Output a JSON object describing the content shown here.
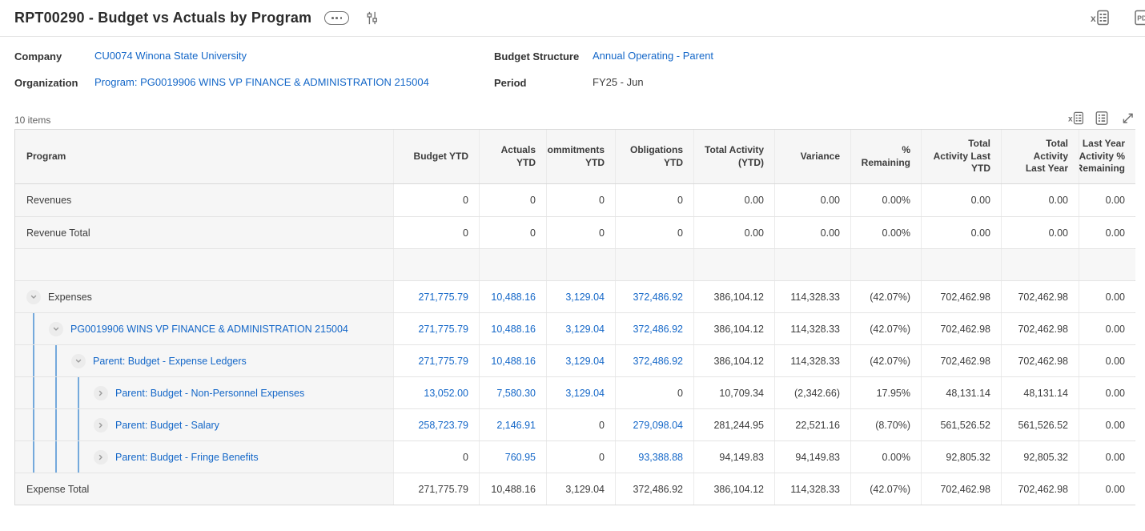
{
  "page": {
    "title": "RPT00290 - Budget vs Actuals by Program"
  },
  "icons": {
    "related_actions": "ellipsis-pill",
    "chart_settings": "sliders-icon",
    "export_excel": "excel-export-icon",
    "export_pdf": "pdf-export-icon",
    "grid_view": "grid-view-icon",
    "expand": "expand-icon",
    "pdf_label": "PDF"
  },
  "colors": {
    "link_blue": "#1467c8",
    "guide_blue": "#74a9dc",
    "cell_gray": "#f6f6f6"
  },
  "filters": [
    {
      "label": "Company",
      "value": "CU0074 Winona State University",
      "is_link": true
    },
    {
      "label": "Budget Structure",
      "value": "Annual Operating - Parent",
      "is_link": true
    },
    {
      "label": "Organization",
      "value": "Program: PG0019906 WINS VP FINANCE & ADMINISTRATION 215004",
      "is_link": true
    },
    {
      "label": "Period",
      "value": "FY25 - Jun",
      "is_link": false
    }
  ],
  "table": {
    "items_count": "10 items",
    "columns": [
      "Program",
      "Budget YTD",
      "Actuals YTD",
      "Commitments YTD",
      "Obligations YTD",
      "Total Activity (YTD)",
      "Variance",
      "% Remaining",
      "Total Activity Last YTD",
      "Total Activity Last Year",
      "Last Year Activity % Remaining"
    ],
    "rows": [
      {
        "program": "Revenues",
        "indent": 0,
        "chevron": "none",
        "program_link": false,
        "empty": false,
        "values": [
          "0",
          "0",
          "0",
          "0",
          "0.00",
          "0.00",
          "0.00%",
          "0.00",
          "0.00",
          "0.00"
        ],
        "blue": [
          0,
          0,
          0,
          0,
          0,
          0,
          0,
          0,
          0,
          0
        ]
      },
      {
        "program": "Revenue Total",
        "indent": 0,
        "chevron": "none",
        "program_link": false,
        "empty": false,
        "values": [
          "0",
          "0",
          "0",
          "0",
          "0.00",
          "0.00",
          "0.00%",
          "0.00",
          "0.00",
          "0.00"
        ],
        "blue": [
          0,
          0,
          0,
          0,
          0,
          0,
          0,
          0,
          0,
          0
        ]
      },
      {
        "program": "",
        "indent": 0,
        "chevron": "none",
        "program_link": false,
        "empty": true,
        "values": [
          "",
          "",
          "",
          "",
          "",
          "",
          "",
          "",
          "",
          ""
        ],
        "blue": [
          0,
          0,
          0,
          0,
          0,
          0,
          0,
          0,
          0,
          0
        ]
      },
      {
        "program": "Expenses",
        "indent": 0,
        "chevron": "down",
        "program_link": false,
        "empty": false,
        "values": [
          "271,775.79",
          "10,488.16",
          "3,129.04",
          "372,486.92",
          "386,104.12",
          "114,328.33",
          "(42.07%)",
          "702,462.98",
          "702,462.98",
          "0.00"
        ],
        "blue": [
          1,
          1,
          1,
          1,
          0,
          0,
          0,
          0,
          0,
          0
        ]
      },
      {
        "program": "PG0019906 WINS VP FINANCE & ADMINISTRATION 215004",
        "indent": 1,
        "chevron": "down",
        "program_link": true,
        "empty": false,
        "values": [
          "271,775.79",
          "10,488.16",
          "3,129.04",
          "372,486.92",
          "386,104.12",
          "114,328.33",
          "(42.07%)",
          "702,462.98",
          "702,462.98",
          "0.00"
        ],
        "blue": [
          1,
          1,
          1,
          1,
          0,
          0,
          0,
          0,
          0,
          0
        ]
      },
      {
        "program": "Parent: Budget - Expense Ledgers",
        "indent": 2,
        "chevron": "down",
        "program_link": true,
        "empty": false,
        "values": [
          "271,775.79",
          "10,488.16",
          "3,129.04",
          "372,486.92",
          "386,104.12",
          "114,328.33",
          "(42.07%)",
          "702,462.98",
          "702,462.98",
          "0.00"
        ],
        "blue": [
          1,
          1,
          1,
          1,
          0,
          0,
          0,
          0,
          0,
          0
        ]
      },
      {
        "program": "Parent: Budget - Non-Personnel Expenses",
        "indent": 3,
        "chevron": "right",
        "program_link": true,
        "empty": false,
        "values": [
          "13,052.00",
          "7,580.30",
          "3,129.04",
          "0",
          "10,709.34",
          "(2,342.66)",
          "17.95%",
          "48,131.14",
          "48,131.14",
          "0.00"
        ],
        "blue": [
          1,
          1,
          1,
          0,
          0,
          0,
          0,
          0,
          0,
          0
        ]
      },
      {
        "program": "Parent: Budget - Salary",
        "indent": 3,
        "chevron": "right",
        "program_link": true,
        "empty": false,
        "values": [
          "258,723.79",
          "2,146.91",
          "0",
          "279,098.04",
          "281,244.95",
          "22,521.16",
          "(8.70%)",
          "561,526.52",
          "561,526.52",
          "0.00"
        ],
        "blue": [
          1,
          1,
          0,
          1,
          0,
          0,
          0,
          0,
          0,
          0
        ]
      },
      {
        "program": "Parent: Budget - Fringe Benefits",
        "indent": 3,
        "chevron": "right",
        "program_link": true,
        "empty": false,
        "values": [
          "0",
          "760.95",
          "0",
          "93,388.88",
          "94,149.83",
          "94,149.83",
          "0.00%",
          "92,805.32",
          "92,805.32",
          "0.00"
        ],
        "blue": [
          0,
          1,
          0,
          1,
          0,
          0,
          0,
          0,
          0,
          0
        ]
      },
      {
        "program": "Expense Total",
        "indent": 0,
        "chevron": "none",
        "program_link": false,
        "empty": false,
        "values": [
          "271,775.79",
          "10,488.16",
          "3,129.04",
          "372,486.92",
          "386,104.12",
          "114,328.33",
          "(42.07%)",
          "702,462.98",
          "702,462.98",
          "0.00"
        ],
        "blue": [
          0,
          0,
          0,
          0,
          0,
          0,
          0,
          0,
          0,
          0
        ]
      }
    ]
  }
}
